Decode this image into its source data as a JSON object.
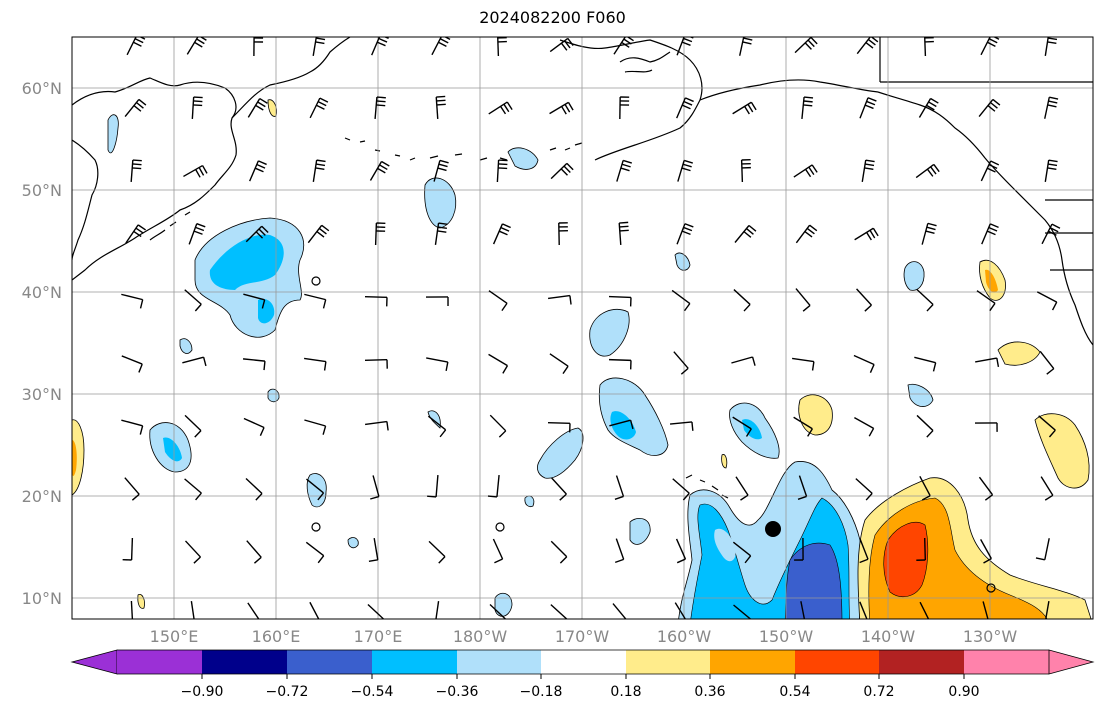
{
  "title": "2024082200 F060",
  "colors": {
    "land_outline": "#000000",
    "grid": "#999999",
    "axis_label": "#888888"
  },
  "latitude_labels": [
    "60°N",
    "50°N",
    "40°N",
    "30°N",
    "20°N",
    "10°N"
  ],
  "longitude_labels": [
    "150°E",
    "160°E",
    "170°E",
    "180°W",
    "170°W",
    "160°W",
    "150°W",
    "140°W",
    "130°W"
  ],
  "colorbar": {
    "labels": [
      "−0.90",
      "−0.72",
      "−0.54",
      "−0.36",
      "−0.18",
      "0.18",
      "0.36",
      "0.54",
      "0.72",
      "0.90"
    ],
    "colors": [
      "#9b30d6",
      "#00008b",
      "#3a5fcd",
      "#00bfff",
      "#b0e0fa",
      "#ffffff",
      "#ffec8b",
      "#ffa500",
      "#ff4500",
      "#b22222",
      "#ff82ab",
      "#ff82ab"
    ],
    "under_color": "#9b30d6",
    "over_color": "#ff82ab"
  },
  "markers": [
    {
      "type": "storm-center",
      "label": "filled circle"
    },
    {
      "type": "open-circle"
    }
  ]
}
